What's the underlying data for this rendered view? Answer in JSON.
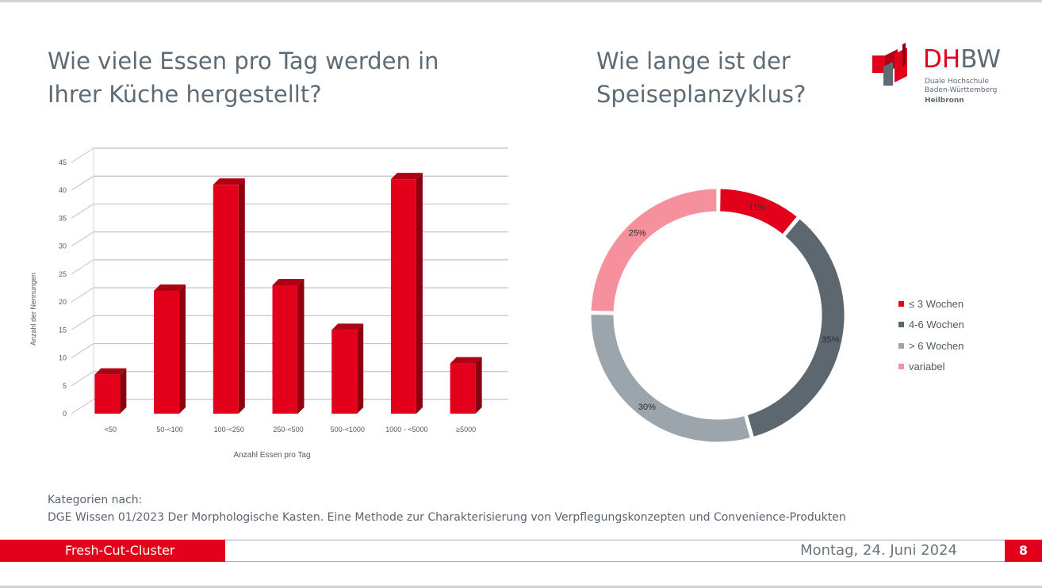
{
  "titles": {
    "left": "Wie viele Essen pro Tag werden in Ihrer Küche hergestellt?",
    "right": "Wie lange ist der Speiseplanzyklus?"
  },
  "logo": {
    "name_dh": "DH",
    "name_bw": "BW",
    "line1": "Duale Hochschule",
    "line2": "Baden-Württemberg",
    "line3": "Heilbronn"
  },
  "chart_data": [
    {
      "type": "bar",
      "title": "",
      "xlabel": "Anzahl Essen pro Tag",
      "ylabel": "Anzahl der Nennungen",
      "categories": [
        "<50",
        "50-<100",
        "100-<250",
        "250-<500",
        "500-<1000",
        "1000 - <5000",
        "≥5000"
      ],
      "values": [
        7,
        22,
        41,
        23,
        15,
        42,
        9
      ],
      "ylim": [
        0,
        45
      ],
      "yticks": [
        0,
        5,
        10,
        15,
        20,
        25,
        30,
        35,
        40,
        45
      ],
      "grid": true,
      "color": "#e2001a"
    },
    {
      "type": "pie",
      "title": "",
      "labels": [
        "≤ 3 Wochen",
        "4-6 Wochen",
        "> 6 Wochen",
        "variabel"
      ],
      "values": [
        11,
        35,
        30,
        25
      ],
      "value_labels": [
        "11%",
        "35%",
        "30%",
        "25%"
      ],
      "colors": [
        "#e2001a",
        "#5d6770",
        "#9ba5ab",
        "#f6909c"
      ],
      "legend_position": "right"
    }
  ],
  "source": {
    "line1": "Kategorien nach:",
    "line2": "DGE Wissen 01/2023 Der Morphologische Kasten. Eine Methode zur Charakterisierung von Verpflegungskonzepten und Convenience-Produkten"
  },
  "footer": {
    "project": "Fresh-Cut-Cluster",
    "date": "Montag, 24. Juni 2024",
    "page": "8"
  }
}
